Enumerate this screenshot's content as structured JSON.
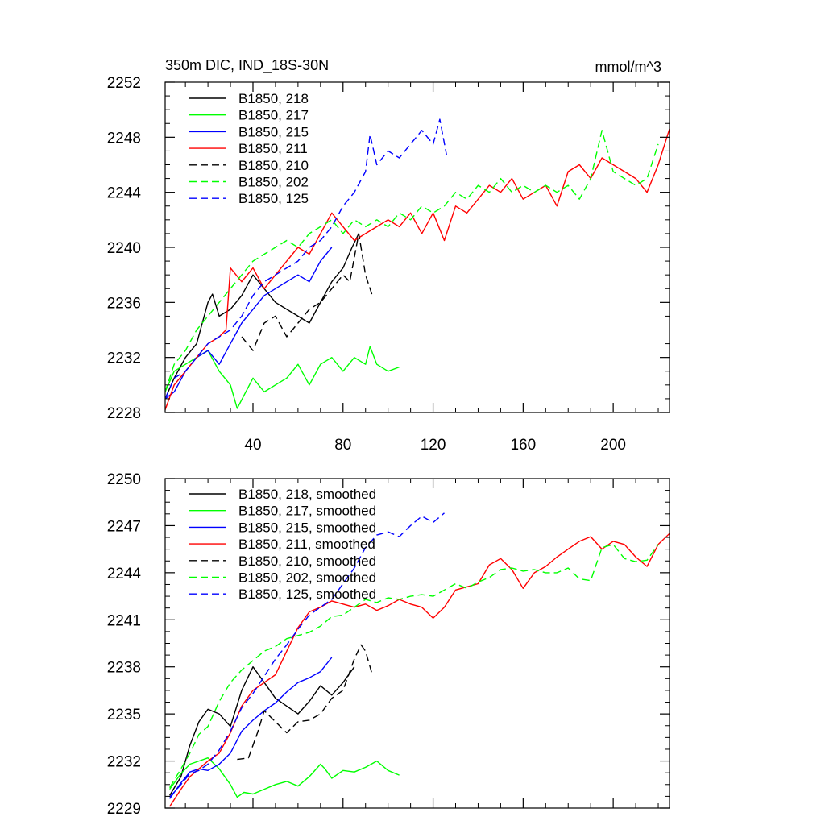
{
  "chart_data": [
    {
      "type": "line",
      "title": "350m DIC, IND_18S-30N",
      "units": "mmol/m^3",
      "xlim": [
        1,
        225
      ],
      "ylim": [
        2228,
        2252
      ],
      "xticks": [
        40,
        80,
        120,
        160,
        200
      ],
      "yticks": [
        2228,
        2232,
        2236,
        2240,
        2244,
        2248,
        2252
      ],
      "grid": false,
      "legend": "top-left",
      "series": [
        {
          "name": "B1850, 218",
          "color": "#000000",
          "dash": "solid",
          "x": [
            1,
            5,
            10,
            15,
            20,
            22,
            25,
            30,
            35,
            40,
            45,
            50,
            55,
            60,
            65,
            70,
            75,
            80,
            84,
            87
          ],
          "y": [
            2229.0,
            2230.5,
            2232.0,
            2233.0,
            2236.0,
            2236.6,
            2235.0,
            2235.5,
            2236.5,
            2238.0,
            2237.0,
            2236.0,
            2235.5,
            2235.0,
            2234.5,
            2236.0,
            2237.5,
            2238.5,
            2240.0,
            2241.0
          ]
        },
        {
          "name": "B1850, 217",
          "color": "#00ff00",
          "dash": "solid",
          "x": [
            1,
            5,
            10,
            15,
            20,
            25,
            30,
            33,
            40,
            45,
            50,
            55,
            60,
            65,
            70,
            75,
            80,
            85,
            90,
            92,
            95,
            100,
            105
          ],
          "y": [
            2229.5,
            2231.0,
            2231.5,
            2232.0,
            2232.5,
            2231.0,
            2230.0,
            2228.3,
            2230.5,
            2229.5,
            2230.0,
            2230.5,
            2231.5,
            2230.0,
            2231.5,
            2232.0,
            2231.0,
            2232.0,
            2231.5,
            2232.8,
            2231.5,
            2231.0,
            2231.3
          ]
        },
        {
          "name": "B1850, 215",
          "color": "#0000ff",
          "dash": "solid",
          "x": [
            1,
            5,
            10,
            15,
            20,
            25,
            30,
            35,
            40,
            45,
            50,
            55,
            60,
            65,
            70,
            75
          ],
          "y": [
            2229.0,
            2229.5,
            2231.0,
            2232.0,
            2232.5,
            2231.5,
            2233.0,
            2234.5,
            2235.5,
            2236.5,
            2237.0,
            2237.5,
            2238.0,
            2237.5,
            2239.0,
            2240.0
          ]
        },
        {
          "name": "B1850, 211",
          "color": "#ff0000",
          "dash": "solid",
          "x": [
            1,
            5,
            10,
            15,
            20,
            25,
            28,
            30,
            35,
            40,
            45,
            50,
            55,
            60,
            65,
            70,
            75,
            80,
            85,
            90,
            95,
            100,
            105,
            110,
            115,
            120,
            125,
            130,
            135,
            140,
            145,
            150,
            155,
            160,
            165,
            170,
            175,
            180,
            185,
            190,
            195,
            200,
            205,
            210,
            215,
            220,
            225
          ],
          "y": [
            2228.2,
            2230.0,
            2231.0,
            2232.0,
            2233.0,
            2233.5,
            2234.0,
            2238.5,
            2237.5,
            2238.5,
            2237.0,
            2238.0,
            2239.0,
            2240.0,
            2239.5,
            2241.0,
            2242.5,
            2241.5,
            2240.5,
            2241.0,
            2241.5,
            2242.0,
            2241.5,
            2242.5,
            2241.0,
            2242.5,
            2240.5,
            2243.0,
            2242.5,
            2243.5,
            2244.5,
            2244.0,
            2245.0,
            2243.5,
            2244.0,
            2244.5,
            2243.0,
            2245.5,
            2246.0,
            2245.0,
            2246.5,
            2246.0,
            2245.5,
            2245.0,
            2244.0,
            2246.0,
            2248.6
          ]
        },
        {
          "name": "B1850, 210",
          "color": "#000000",
          "dash": "dash",
          "x": [
            35,
            40,
            45,
            50,
            55,
            60,
            65,
            70,
            75,
            80,
            83,
            87,
            90,
            93
          ],
          "y": [
            2233.5,
            2232.5,
            2234.5,
            2235.0,
            2233.5,
            2234.5,
            2235.5,
            2236.0,
            2237.0,
            2238.0,
            2237.5,
            2241.0,
            2238.0,
            2236.5
          ]
        },
        {
          "name": "B1850, 202",
          "color": "#00ff00",
          "dash": "dash",
          "x": [
            1,
            5,
            10,
            15,
            20,
            25,
            30,
            35,
            40,
            45,
            50,
            55,
            60,
            65,
            70,
            75,
            80,
            85,
            90,
            95,
            100,
            105,
            110,
            115,
            120,
            125,
            130,
            135,
            140,
            145,
            150,
            155,
            160,
            165,
            170,
            175,
            180,
            185,
            190,
            195,
            200,
            205,
            210,
            215,
            220
          ],
          "y": [
            2229.5,
            2231.5,
            2232.5,
            2234.0,
            2235.0,
            2236.0,
            2237.0,
            2238.0,
            2239.0,
            2239.5,
            2240.0,
            2240.5,
            2240.0,
            2241.0,
            2241.5,
            2242.0,
            2241.0,
            2242.0,
            2241.5,
            2242.0,
            2241.5,
            2242.5,
            2242.0,
            2243.0,
            2242.5,
            2243.0,
            2244.0,
            2243.5,
            2244.5,
            2244.0,
            2245.0,
            2244.0,
            2244.5,
            2244.0,
            2244.5,
            2244.0,
            2244.5,
            2243.5,
            2245.0,
            2248.5,
            2245.5,
            2245.0,
            2244.5,
            2245.0,
            2247.5
          ]
        },
        {
          "name": "B1850, 125",
          "color": "#0000ff",
          "dash": "dash",
          "x": [
            1,
            5,
            10,
            15,
            20,
            25,
            30,
            35,
            40,
            45,
            50,
            55,
            60,
            65,
            70,
            75,
            80,
            85,
            90,
            92,
            95,
            100,
            105,
            110,
            115,
            120,
            123,
            126
          ],
          "y": [
            2229.0,
            2230.5,
            2231.0,
            2232.0,
            2233.0,
            2233.5,
            2234.0,
            2235.0,
            2236.5,
            2237.5,
            2238.0,
            2238.5,
            2239.0,
            2240.0,
            2240.5,
            2241.5,
            2243.0,
            2244.0,
            2245.5,
            2248.2,
            2246.0,
            2247.0,
            2246.5,
            2247.5,
            2248.5,
            2247.5,
            2249.3,
            2246.7
          ]
        }
      ]
    },
    {
      "type": "line",
      "xlim": [
        1,
        225
      ],
      "ylim": [
        2229,
        2250
      ],
      "yticks": [
        2229,
        2232,
        2235,
        2238,
        2241,
        2244,
        2247,
        2250
      ],
      "grid": false,
      "legend": "top-left",
      "series": [
        {
          "name": "B1850, 218, smoothed",
          "color": "#000000",
          "dash": "solid",
          "x": [
            3,
            8,
            12,
            16,
            20,
            25,
            30,
            35,
            40,
            45,
            50,
            55,
            60,
            65,
            70,
            75,
            80,
            85
          ],
          "y": [
            2229.8,
            2231.0,
            2233.0,
            2234.5,
            2235.3,
            2235.0,
            2234.2,
            2236.5,
            2238.0,
            2237.0,
            2236.0,
            2235.5,
            2235.0,
            2235.8,
            2236.8,
            2236.2,
            2237.0,
            2238.0
          ]
        },
        {
          "name": "B1850, 217, smoothed",
          "color": "#00ff00",
          "dash": "solid",
          "x": [
            3,
            8,
            12,
            16,
            20,
            25,
            30,
            33,
            36,
            40,
            45,
            50,
            55,
            60,
            65,
            70,
            72,
            75,
            80,
            85,
            90,
            95,
            100,
            105
          ],
          "y": [
            2230.2,
            2231.2,
            2231.8,
            2232.0,
            2232.2,
            2231.5,
            2230.5,
            2229.7,
            2230.0,
            2229.9,
            2230.2,
            2230.5,
            2230.7,
            2230.4,
            2231.0,
            2231.8,
            2231.5,
            2230.9,
            2231.4,
            2231.3,
            2231.6,
            2232.0,
            2231.4,
            2231.1
          ]
        },
        {
          "name": "B1850, 215, smoothed",
          "color": "#0000ff",
          "dash": "solid",
          "x": [
            3,
            8,
            12,
            16,
            20,
            25,
            30,
            35,
            40,
            45,
            50,
            55,
            60,
            65,
            70,
            75
          ],
          "y": [
            2229.6,
            2230.6,
            2231.3,
            2231.5,
            2231.4,
            2231.8,
            2232.5,
            2233.9,
            2234.6,
            2235.2,
            2235.7,
            2236.4,
            2237.0,
            2237.3,
            2237.7,
            2238.6
          ]
        },
        {
          "name": "B1850, 211, smoothed",
          "color": "#ff0000",
          "dash": "solid",
          "x": [
            3,
            8,
            12,
            16,
            20,
            25,
            30,
            35,
            40,
            45,
            50,
            55,
            60,
            65,
            70,
            75,
            80,
            85,
            90,
            95,
            100,
            105,
            110,
            115,
            120,
            125,
            130,
            135,
            140,
            145,
            150,
            155,
            160,
            165,
            170,
            175,
            180,
            185,
            190,
            195,
            200,
            205,
            210,
            215,
            220,
            225
          ],
          "y": [
            2229.1,
            2230.2,
            2231.0,
            2231.5,
            2232.0,
            2232.5,
            2233.8,
            2235.5,
            2236.5,
            2237.0,
            2237.5,
            2239.0,
            2240.5,
            2241.5,
            2241.8,
            2242.2,
            2242.0,
            2241.8,
            2242.0,
            2241.6,
            2241.9,
            2242.3,
            2242.0,
            2241.8,
            2241.1,
            2241.8,
            2242.9,
            2243.1,
            2243.3,
            2244.5,
            2244.9,
            2244.2,
            2243.0,
            2244.0,
            2244.4,
            2245.0,
            2245.5,
            2246.0,
            2246.3,
            2245.5,
            2246.0,
            2245.8,
            2245.0,
            2244.4,
            2245.8,
            2246.5
          ]
        },
        {
          "name": "B1850, 210, smoothed",
          "color": "#000000",
          "dash": "dash",
          "x": [
            33,
            38,
            42,
            45,
            50,
            55,
            60,
            65,
            70,
            75,
            80,
            85,
            88,
            90,
            93
          ],
          "y": [
            2232.1,
            2232.2,
            2233.8,
            2235.2,
            2234.5,
            2233.8,
            2234.5,
            2234.6,
            2235.0,
            2236.0,
            2236.5,
            2238.5,
            2239.4,
            2239.0,
            2237.5
          ]
        },
        {
          "name": "B1850, 202, smoothed",
          "color": "#00ff00",
          "dash": "dash",
          "x": [
            3,
            8,
            12,
            16,
            20,
            25,
            30,
            35,
            40,
            45,
            50,
            55,
            60,
            65,
            70,
            75,
            80,
            85,
            90,
            95,
            100,
            105,
            110,
            115,
            120,
            125,
            130,
            135,
            140,
            145,
            150,
            155,
            160,
            165,
            170,
            175,
            180,
            185,
            190,
            195,
            200,
            205,
            210,
            215,
            220
          ],
          "y": [
            2230.3,
            2231.5,
            2232.5,
            2233.7,
            2234.2,
            2235.8,
            2237.0,
            2237.8,
            2238.4,
            2239.0,
            2239.3,
            2239.8,
            2240.0,
            2240.2,
            2240.6,
            2241.2,
            2241.3,
            2241.8,
            2242.3,
            2242.1,
            2242.4,
            2242.3,
            2242.5,
            2242.6,
            2242.5,
            2242.9,
            2243.3,
            2243.0,
            2243.4,
            2243.7,
            2244.2,
            2244.3,
            2244.1,
            2244.2,
            2244.0,
            2244.0,
            2244.3,
            2243.6,
            2243.5,
            2245.6,
            2245.8,
            2244.9,
            2244.7,
            2244.8,
            2245.8
          ]
        },
        {
          "name": "B1850, 125, smoothed",
          "color": "#0000ff",
          "dash": "dash",
          "x": [
            3,
            8,
            12,
            16,
            20,
            25,
            30,
            35,
            40,
            45,
            50,
            55,
            60,
            65,
            70,
            75,
            80,
            85,
            90,
            95,
            100,
            105,
            110,
            115,
            120,
            125
          ],
          "y": [
            2229.7,
            2230.5,
            2231.2,
            2231.4,
            2231.8,
            2232.7,
            2233.9,
            2235.4,
            2236.3,
            2237.4,
            2238.5,
            2239.4,
            2240.4,
            2241.3,
            2241.8,
            2242.3,
            2243.3,
            2244.3,
            2245.6,
            2246.4,
            2246.6,
            2246.3,
            2247.0,
            2247.6,
            2247.2,
            2247.8
          ]
        }
      ]
    }
  ]
}
